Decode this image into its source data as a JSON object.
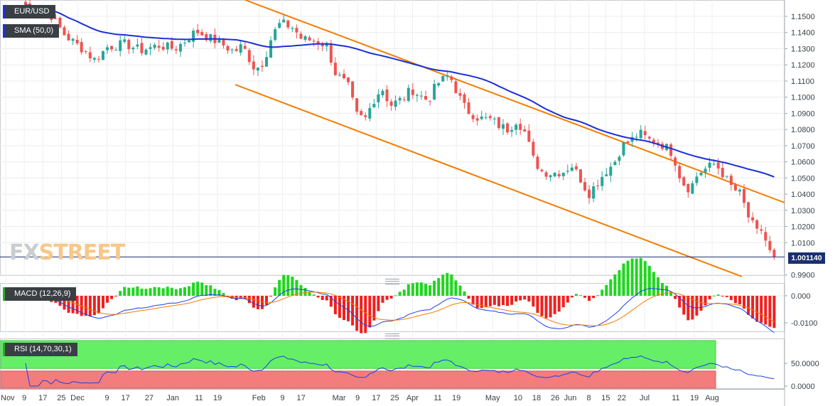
{
  "legend": {
    "symbol": "EUR/USD",
    "sma": "SMA (50,0)",
    "macd": "MACD (12,26,9)",
    "rsi": "RSI (14,70,30,1)"
  },
  "watermark": {
    "part1": "FX",
    "part2": "STREET"
  },
  "last_price_label": "1.001140",
  "colors": {
    "bull": "#26a69a",
    "bear": "#ef5350",
    "sma": "#1a2fd6",
    "channel": "#f57c00",
    "macd_line": "#1a3ff0",
    "signal_line": "#f57c00",
    "hist_pos": "#1fd61f",
    "hist_neg": "#f01f1f",
    "rsi_line": "#1a3ff0",
    "rsi_over": "#66ee66",
    "rsi_under": "#f47c7c",
    "price_line": "#1b3070"
  },
  "chart_data": {
    "type": "candlestick",
    "symbol": "EUR/USD",
    "x_ticks": [
      "Nov",
      "9",
      "17",
      "25",
      "Dec",
      "9",
      "17",
      "27",
      "Jan",
      "11",
      "19",
      "Feb",
      "9",
      "17",
      "Mar",
      "9",
      "17",
      "25",
      "Apr",
      "11",
      "19",
      "May",
      "10",
      "18",
      "26",
      "Jun",
      "8",
      "15",
      "22",
      "Jul",
      "11",
      "19",
      "Aug"
    ],
    "price_ticks": [
      "1.1500",
      "1.1400",
      "1.1300",
      "1.1200",
      "1.1100",
      "1.1000",
      "1.0900",
      "1.0800",
      "1.0700",
      "1.0600",
      "1.0500",
      "1.0400",
      "1.0300",
      "1.0200",
      "1.0100",
      "0.9900"
    ],
    "price_range": [
      0.985,
      1.156
    ],
    "last_price": 1.00114,
    "macd_ticks": [
      "0.000",
      "-0.0100"
    ],
    "macd_range": [
      -0.0125,
      0.0045
    ],
    "rsi_ticks": [
      "50.0000",
      "0.0000"
    ],
    "rsi_range": [
      0,
      100
    ],
    "rsi_levels": [
      30,
      70
    ],
    "channel_upper": [
      [
        2021.62,
        1.1688
      ],
      [
        2022.66,
        1.0345
      ]
    ],
    "channel_lower": [
      [
        2021.78,
        1.1035
      ],
      [
        2022.61,
        0.9892
      ]
    ],
    "anchors": [
      [
        2021.833,
        1.157
      ],
      [
        2021.86,
        1.153
      ],
      [
        2021.88,
        1.138
      ],
      [
        2021.9,
        1.13
      ],
      [
        2021.915,
        1.123
      ],
      [
        2021.93,
        1.131
      ],
      [
        2021.95,
        1.133
      ],
      [
        2021.97,
        1.129
      ],
      [
        2021.99,
        1.132
      ],
      [
        2022.01,
        1.13
      ],
      [
        2022.02,
        1.134
      ],
      [
        2022.035,
        1.141
      ],
      [
        2022.05,
        1.137
      ],
      [
        2022.065,
        1.133
      ],
      [
        2022.08,
        1.128
      ],
      [
        2022.09,
        1.132
      ],
      [
        2022.105,
        1.117
      ],
      [
        2022.115,
        1.122
      ],
      [
        2022.125,
        1.138
      ],
      [
        2022.135,
        1.146
      ],
      [
        2022.15,
        1.143
      ],
      [
        2022.16,
        1.136
      ],
      [
        2022.175,
        1.135
      ],
      [
        2022.19,
        1.132
      ],
      [
        2022.2,
        1.115
      ],
      [
        2022.215,
        1.107
      ],
      [
        2022.225,
        1.089
      ],
      [
        2022.235,
        1.086
      ],
      [
        2022.245,
        1.098
      ],
      [
        2022.255,
        1.106
      ],
      [
        2022.265,
        1.095
      ],
      [
        2022.28,
        1.099
      ],
      [
        2022.29,
        1.105
      ],
      [
        2022.3,
        1.101
      ],
      [
        2022.31,
        1.098
      ],
      [
        2022.32,
        1.108
      ],
      [
        2022.335,
        1.114
      ],
      [
        2022.345,
        1.102
      ],
      [
        2022.355,
        1.092
      ],
      [
        2022.37,
        1.087
      ],
      [
        2022.385,
        1.086
      ],
      [
        2022.395,
        1.082
      ],
      [
        2022.405,
        1.08
      ],
      [
        2022.415,
        1.086
      ],
      [
        2022.425,
        1.078
      ],
      [
        2022.435,
        1.061
      ],
      [
        2022.445,
        1.054
      ],
      [
        2022.455,
        1.053
      ],
      [
        2022.47,
        1.054
      ],
      [
        2022.48,
        1.058
      ],
      [
        2022.49,
        1.05
      ],
      [
        2022.5,
        1.04
      ],
      [
        2022.51,
        1.047
      ],
      [
        2022.52,
        1.054
      ],
      [
        2022.53,
        1.059
      ],
      [
        2022.54,
        1.07
      ],
      [
        2022.55,
        1.073
      ],
      [
        2022.56,
        1.078
      ],
      [
        2022.57,
        1.074
      ],
      [
        2022.58,
        1.072
      ],
      [
        2022.59,
        1.07
      ],
      [
        2022.6,
        1.065
      ],
      [
        2022.61,
        1.048
      ],
      [
        2022.62,
        1.043
      ],
      [
        2022.63,
        1.053
      ],
      [
        2022.64,
        1.056
      ],
      [
        2022.65,
        1.059
      ],
      [
        2022.66,
        1.052
      ],
      [
        2022.67,
        1.044
      ],
      [
        2022.68,
        1.04
      ],
      [
        2022.69,
        1.025
      ],
      [
        2022.7,
        1.016
      ],
      [
        2022.705,
        1.018
      ],
      [
        2022.715,
        1.004
      ],
      [
        2022.72,
        1.0011
      ]
    ]
  }
}
